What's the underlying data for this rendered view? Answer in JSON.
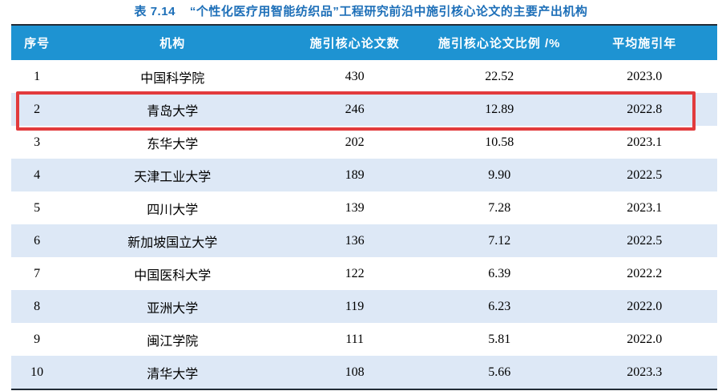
{
  "title": {
    "label": "表 7.14",
    "text": "“个性化医疗用智能纺织品”工程研究前沿中施引核心论文的主要产出机构"
  },
  "table": {
    "columns": [
      "序号",
      "机构",
      "施引核心论文数",
      "施引核心论文比例 /%",
      "平均施引年"
    ],
    "rows": [
      [
        "1",
        "中国科学院",
        "430",
        "22.52",
        "2023.0"
      ],
      [
        "2",
        "青岛大学",
        "246",
        "12.89",
        "2022.8"
      ],
      [
        "3",
        "东华大学",
        "202",
        "10.58",
        "2023.1"
      ],
      [
        "4",
        "天津工业大学",
        "189",
        "9.90",
        "2022.5"
      ],
      [
        "5",
        "四川大学",
        "139",
        "7.28",
        "2023.1"
      ],
      [
        "6",
        "新加坡国立大学",
        "136",
        "7.12",
        "2022.5"
      ],
      [
        "7",
        "中国医科大学",
        "122",
        "6.39",
        "2022.2"
      ],
      [
        "8",
        "亚洲大学",
        "119",
        "6.23",
        "2022.0"
      ],
      [
        "9",
        "闽江学院",
        "111",
        "5.81",
        "2022.0"
      ],
      [
        "10",
        "清华大学",
        "108",
        "5.66",
        "2023.3"
      ]
    ],
    "highlighted_row": 2
  },
  "colors": {
    "header_bg": "#1e93d2",
    "row_alt_bg": "#dde8f6",
    "title_color": "#1d6fb8",
    "highlight_border": "#e23b3d",
    "table_rule": "#212b36"
  }
}
